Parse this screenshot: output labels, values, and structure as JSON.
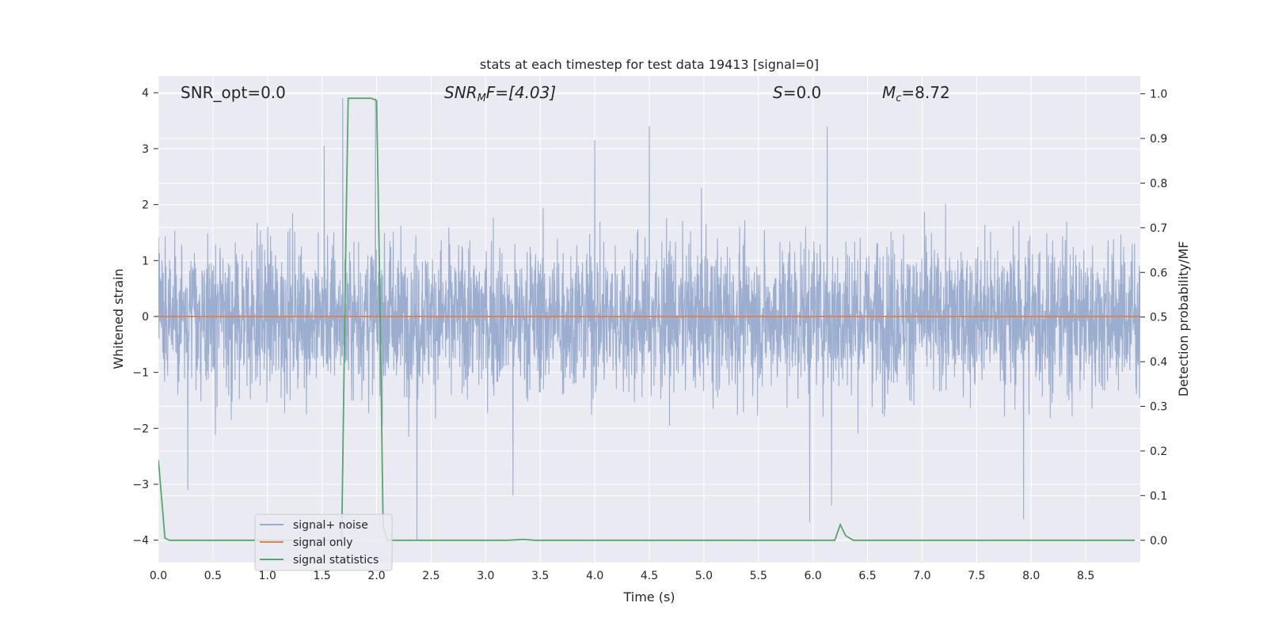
{
  "chart_data": {
    "type": "line",
    "title": "stats at each timestep for test data 19413 [signal=0]",
    "xlabel": "Time (s)",
    "ylabel_left": "Whitened strain",
    "ylabel_right": "Detection probability/MF",
    "xlim": [
      0.0,
      9.0
    ],
    "ylim_left": [
      -4.4,
      4.3
    ],
    "ylim_right": [
      -0.05,
      1.04
    ],
    "x_ticks": [
      0.0,
      0.5,
      1.0,
      1.5,
      2.0,
      2.5,
      3.0,
      3.5,
      4.0,
      4.5,
      5.0,
      5.5,
      6.0,
      6.5,
      7.0,
      7.5,
      8.0,
      8.5
    ],
    "x_tick_labels": [
      "0.0",
      "0.5",
      "1.0",
      "1.5",
      "2.0",
      "2.5",
      "3.0",
      "3.5",
      "4.0",
      "4.5",
      "5.0",
      "5.5",
      "6.0",
      "6.5",
      "7.0",
      "7.5",
      "8.0",
      "8.5"
    ],
    "y_left_ticks": [
      4,
      3,
      2,
      1,
      0,
      -1,
      -2,
      -3,
      -4
    ],
    "y_left_tick_labels": [
      "4",
      "3",
      "2",
      "1",
      "0",
      "−1",
      "−2",
      "−3",
      "−4"
    ],
    "y_right_ticks": [
      1.0,
      0.9,
      0.8,
      0.7,
      0.6,
      0.5,
      0.4,
      0.3,
      0.2,
      0.1,
      0.0
    ],
    "y_right_tick_labels": [
      "1.0",
      "0.9",
      "0.8",
      "0.7",
      "0.6",
      "0.5",
      "0.4",
      "0.3",
      "0.2",
      "0.1",
      "0.0"
    ],
    "grid": true,
    "legend_position": "lower-left",
    "annotations": {
      "snr_opt": "SNR_opt=0.0",
      "snr_mf_base": "SNR",
      "snr_mf_sub": "M",
      "snr_mf_rest": "F=[4.03]",
      "s_base": "S",
      "s_rest": "=0.0",
      "mc_base": "M",
      "mc_sub": "c",
      "mc_rest": "=8.72"
    },
    "series": [
      {
        "name": "signal+ noise",
        "axis": "left",
        "color": "#98abce",
        "description_values": "dense white-noise trace, typical envelope about ±2.2",
        "peaks": [
          {
            "x": 1.69,
            "y": 3.9
          },
          {
            "x": 1.69,
            "y": -3.9
          },
          {
            "x": 1.99,
            "y": 3.9
          },
          {
            "x": 1.99,
            "y": -4.0
          },
          {
            "x": 1.52,
            "y": 3.05
          },
          {
            "x": 2.37,
            "y": -4.0
          },
          {
            "x": 4.0,
            "y": 3.15
          },
          {
            "x": 4.5,
            "y": 3.4
          },
          {
            "x": 6.13,
            "y": 3.4
          },
          {
            "x": 5.97,
            "y": -3.68
          },
          {
            "x": 6.17,
            "y": -3.38
          },
          {
            "x": 7.93,
            "y": -3.63
          },
          {
            "x": 3.25,
            "y": -3.2
          },
          {
            "x": 0.27,
            "y": -3.1
          }
        ]
      },
      {
        "name": "signal only",
        "axis": "left",
        "color": "#dd8452",
        "x": [
          0.0,
          9.0
        ],
        "y": [
          0.0,
          0.0
        ]
      },
      {
        "name": "signal statistics",
        "axis": "right",
        "color": "#55a868",
        "x": [
          0.0,
          0.06,
          0.1,
          0.2,
          0.4,
          0.6,
          0.8,
          1.0,
          1.2,
          1.4,
          1.6,
          1.68,
          1.72,
          1.74,
          1.8,
          1.9,
          1.95,
          2.0,
          2.03,
          2.06,
          2.1,
          2.2,
          2.4,
          2.8,
          3.2,
          3.35,
          3.45,
          3.8,
          4.4,
          5.0,
          5.6,
          6.0,
          6.2,
          6.25,
          6.3,
          6.37,
          6.5,
          7.0,
          7.5,
          8.0,
          8.5,
          8.95
        ],
        "y": [
          0.18,
          0.005,
          0.0,
          0.0,
          0.0,
          0.0,
          0.0,
          0.0,
          0.0,
          0.0,
          0.0,
          0.0,
          0.7,
          0.99,
          0.99,
          0.99,
          0.99,
          0.985,
          0.55,
          0.03,
          0.0,
          0.0,
          0.0,
          0.0,
          0.0,
          0.002,
          0.0,
          0.0,
          0.0,
          0.0,
          0.0,
          0.0,
          0.0,
          0.035,
          0.01,
          0.0,
          0.0,
          0.0,
          0.0,
          0.0,
          0.0,
          0.0
        ]
      }
    ]
  },
  "colors": {
    "figure_bg": "#ffffff",
    "axes_bg": "#eaeaf2",
    "grid": "#ffffff",
    "text": "#262626"
  }
}
